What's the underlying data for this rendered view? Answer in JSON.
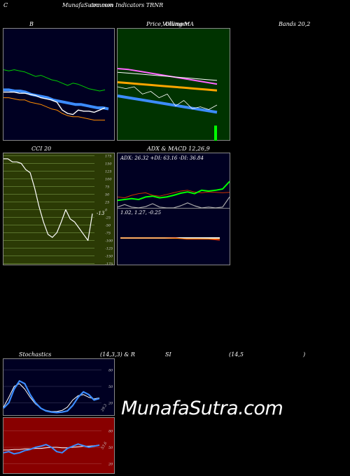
{
  "header": {
    "left": "C",
    "title": "MunafaSutra.com",
    "title_overlap": "common Indicators TRNR"
  },
  "titles": {
    "bollinger": "B",
    "price_ma": "Price,",
    "price_ma_overlap": "Volume",
    "price_ma_overlap2": "Ollinger",
    "price_ma_end": "MA",
    "bands": "Bands 20,2",
    "cci": "CCI 20",
    "adx_macd": "ADX  & MACD 12,26,9",
    "stoch_left": "Stochastics",
    "stoch_mid": "(14,3,3) & R",
    "stoch_si": "SI",
    "stoch_rsi": "(14,5",
    "stoch_paren": ")"
  },
  "adx_readout": "ADX: 26.32  +DI: 63.16  -DI: 36.84",
  "macd_readout": "1.02,  1.27,  -0.25",
  "cci_value": "-13",
  "stoch_value": "29.3",
  "rsi_value": "53.6",
  "watermark": "MunafaSutra.com",
  "colors": {
    "bollinger_bg": "#000022",
    "price_bg": "#003300",
    "cci_bg": "#2b3a05",
    "adx_bg": "#000022",
    "stoch_bg": "#000022",
    "rsi_bg": "#880000",
    "blue": "#3c8cff",
    "green": "#00ff00",
    "orange": "#ff8c00"
  },
  "chart_data": [
    {
      "name": "bollinger",
      "type": "line",
      "series": [
        {
          "values": [
            64,
            63,
            64,
            63,
            62,
            60,
            58,
            59,
            57,
            55,
            54,
            52,
            50,
            52,
            51,
            49,
            47,
            46,
            45,
            46
          ]
        },
        {
          "values": [
            46,
            46,
            45,
            45,
            44,
            42,
            41,
            40,
            39,
            37,
            36,
            35,
            34,
            33,
            33,
            32,
            31,
            30,
            30,
            29
          ]
        },
        {
          "values": [
            39,
            39,
            38,
            37,
            37,
            35,
            34,
            33,
            31,
            29,
            28,
            25,
            23,
            22,
            22,
            21,
            20,
            19,
            19,
            19
          ]
        },
        {
          "values": [
            44,
            44,
            44,
            43,
            43,
            42,
            41,
            39,
            38,
            37,
            35,
            28,
            25,
            24,
            28,
            27,
            27,
            26,
            28,
            30
          ]
        }
      ]
    },
    {
      "name": "price_ma",
      "type": "line",
      "series": [
        {
          "values": [
            80,
            79,
            77,
            75,
            73,
            71,
            69,
            67,
            65,
            63
          ]
        },
        {
          "values": [
            76,
            75,
            74,
            73,
            72,
            71,
            70,
            69,
            68,
            67
          ]
        },
        {
          "values": [
            65,
            64,
            63,
            62,
            61,
            60,
            59,
            58,
            57,
            56
          ]
        },
        {
          "values": [
            50,
            48,
            46,
            44,
            42,
            40,
            38,
            36,
            34,
            32
          ]
        },
        {
          "values": [
            60,
            58,
            60,
            52,
            55,
            48,
            52,
            39,
            45,
            36,
            38,
            35,
            40
          ]
        }
      ],
      "volume": [
        0,
        0,
        0,
        0,
        0,
        0,
        0,
        0,
        0,
        18
      ]
    },
    {
      "name": "cci",
      "type": "line",
      "ylim": [
        -175,
        175
      ],
      "y_ticks": [
        175,
        150,
        125,
        100,
        75,
        50,
        25,
        0,
        -25,
        -50,
        -75,
        -100,
        -125,
        -150,
        -175
      ],
      "values": [
        165,
        165,
        155,
        155,
        150,
        130,
        120,
        70,
        10,
        -40,
        -80,
        -90,
        -75,
        -40,
        0,
        -30,
        -40,
        -60,
        -80,
        -100,
        -13
      ]
    },
    {
      "name": "adx",
      "type": "line",
      "series": [
        {
          "values": [
            18,
            20,
            22,
            20,
            26,
            28,
            24,
            26,
            30,
            35,
            38,
            34,
            42,
            40,
            42,
            45,
            63
          ]
        },
        {
          "values": [
            26,
            24,
            30,
            34,
            36,
            30,
            28,
            32,
            36,
            40,
            42,
            38,
            36,
            38,
            37,
            36,
            37
          ]
        },
        {
          "values": [
            2,
            8,
            2,
            0,
            3,
            10,
            2,
            0,
            0,
            5,
            12,
            5,
            0,
            2,
            0,
            2,
            26
          ]
        }
      ]
    },
    {
      "name": "macd",
      "type": "line",
      "series": [
        {
          "values": [
            1.2,
            1.2,
            1.2,
            1.2,
            1.2,
            1.2,
            1.1,
            1.1,
            1.1,
            1.0
          ]
        },
        {
          "values": [
            1.4,
            1.4,
            1.4,
            1.4,
            1.4,
            1.35,
            1.3,
            1.3,
            1.28,
            1.27
          ]
        }
      ]
    },
    {
      "name": "stochastics",
      "type": "line",
      "y_ticks": [
        80,
        50,
        20
      ],
      "series": [
        {
          "values": [
            10,
            20,
            45,
            60,
            55,
            35,
            20,
            10,
            5,
            3,
            2,
            3,
            5,
            15,
            30,
            40,
            35,
            25,
            28
          ]
        },
        {
          "values": [
            12,
            30,
            50,
            55,
            45,
            30,
            18,
            10,
            6,
            4,
            4,
            6,
            12,
            25,
            33,
            35,
            30,
            27,
            29
          ]
        }
      ]
    },
    {
      "name": "rsi",
      "type": "line",
      "y_ticks": [
        80,
        50,
        20
      ],
      "series": [
        {
          "values": [
            40,
            42,
            38,
            40,
            44,
            46,
            50,
            52,
            55,
            50,
            42,
            40,
            48,
            52,
            56,
            53,
            50,
            52,
            54
          ]
        },
        {
          "values": [
            45,
            45,
            46,
            46,
            47,
            47,
            48,
            48,
            49,
            50,
            50,
            49,
            49,
            50,
            51,
            52,
            52,
            53,
            54
          ]
        }
      ]
    }
  ]
}
